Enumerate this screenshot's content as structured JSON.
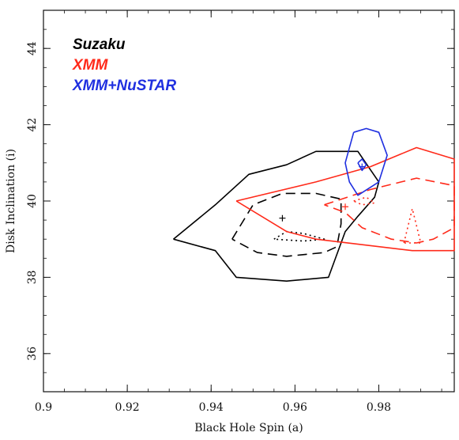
{
  "chart_data": {
    "type": "contour",
    "xlabel": "Black Hole Spin (a)",
    "ylabel": "Disk Inclination (i)",
    "xlim": [
      0.9,
      0.998
    ],
    "ylim": [
      35,
      45
    ],
    "xticks": [
      0.9,
      0.92,
      0.94,
      0.96,
      0.98
    ],
    "yticks": [
      36,
      38,
      40,
      42,
      44
    ],
    "legend": {
      "placement": "top-left",
      "entries": [
        {
          "label": "Suzaku",
          "color": "#000000"
        },
        {
          "label": "XMM",
          "color": "#ff2a1a"
        },
        {
          "label": "XMM+NuSTAR",
          "color": "#1f2fe0"
        }
      ]
    },
    "series": [
      {
        "name": "Suzaku",
        "color": "#000000",
        "best_fit": [
          0.957,
          39.55
        ],
        "contours": [
          {
            "style": "solid",
            "points": [
              [
                0.931,
                39.0
              ],
              [
                0.941,
                39.9
              ],
              [
                0.949,
                40.7
              ],
              [
                0.958,
                40.95
              ],
              [
                0.965,
                41.3
              ],
              [
                0.975,
                41.3
              ],
              [
                0.98,
                40.5
              ],
              [
                0.979,
                40.1
              ],
              [
                0.975,
                39.6
              ],
              [
                0.972,
                39.2
              ],
              [
                0.968,
                38.0
              ],
              [
                0.958,
                37.9
              ],
              [
                0.946,
                38.0
              ],
              [
                0.941,
                38.7
              ],
              [
                0.931,
                39.0
              ]
            ]
          },
          {
            "style": "dashed",
            "points": [
              [
                0.945,
                39.0
              ],
              [
                0.95,
                39.9
              ],
              [
                0.957,
                40.2
              ],
              [
                0.965,
                40.2
              ],
              [
                0.971,
                40.05
              ],
              [
                0.971,
                39.4
              ],
              [
                0.97,
                38.8
              ],
              [
                0.967,
                38.65
              ],
              [
                0.958,
                38.55
              ],
              [
                0.951,
                38.65
              ],
              [
                0.945,
                39.0
              ]
            ]
          },
          {
            "style": "dotted",
            "points": [
              [
                0.955,
                39.0
              ],
              [
                0.958,
                39.2
              ],
              [
                0.962,
                39.15
              ],
              [
                0.967,
                39.0
              ],
              [
                0.962,
                38.95
              ],
              [
                0.955,
                39.0
              ]
            ]
          }
        ]
      },
      {
        "name": "XMM",
        "color": "#ff2a1a",
        "best_fit": [
          0.972,
          39.85
        ],
        "contours": [
          {
            "style": "solid",
            "points": [
              [
                0.946,
                40.0
              ],
              [
                0.965,
                40.5
              ],
              [
                0.978,
                40.9
              ],
              [
                0.989,
                41.4
              ],
              [
                0.998,
                41.1
              ],
              [
                0.998,
                38.7
              ],
              [
                0.988,
                38.7
              ],
              [
                0.965,
                39.0
              ],
              [
                0.958,
                39.2
              ],
              [
                0.946,
                40.0
              ]
            ]
          },
          {
            "style": "dashed",
            "points": [
              [
                0.967,
                39.9
              ],
              [
                0.978,
                40.3
              ],
              [
                0.989,
                40.6
              ],
              [
                0.998,
                40.4
              ],
              [
                0.998,
                39.3
              ],
              [
                0.993,
                39.0
              ],
              [
                0.989,
                38.9
              ],
              [
                0.983,
                39.0
              ],
              [
                0.976,
                39.3
              ],
              [
                0.972,
                39.7
              ],
              [
                0.967,
                39.9
              ]
            ]
          },
          {
            "style": "dotted",
            "points": [
              [
                0.974,
                40.0
              ],
              [
                0.977,
                40.1
              ],
              [
                0.979,
                39.95
              ],
              [
                0.976,
                39.9
              ],
              [
                0.974,
                40.0
              ]
            ]
          },
          {
            "style": "dotted",
            "points": [
              [
                0.986,
                38.9
              ],
              [
                0.988,
                39.8
              ],
              [
                0.99,
                38.9
              ],
              [
                0.986,
                38.9
              ]
            ]
          }
        ]
      },
      {
        "name": "XMM+NuSTAR",
        "color": "#1f2fe0",
        "best_fit": [
          0.976,
          40.9
        ],
        "contours": [
          {
            "style": "solid",
            "points": [
              [
                0.974,
                41.8
              ],
              [
                0.977,
                41.9
              ],
              [
                0.98,
                41.8
              ],
              [
                0.982,
                41.2
              ],
              [
                0.98,
                40.5
              ],
              [
                0.975,
                40.15
              ],
              [
                0.973,
                40.5
              ],
              [
                0.972,
                41.0
              ],
              [
                0.974,
                41.8
              ]
            ]
          },
          {
            "style": "solid",
            "points": [
              [
                0.975,
                41.0
              ],
              [
                0.976,
                41.1
              ],
              [
                0.977,
                40.95
              ],
              [
                0.976,
                40.8
              ],
              [
                0.975,
                41.0
              ]
            ]
          }
        ]
      }
    ]
  }
}
